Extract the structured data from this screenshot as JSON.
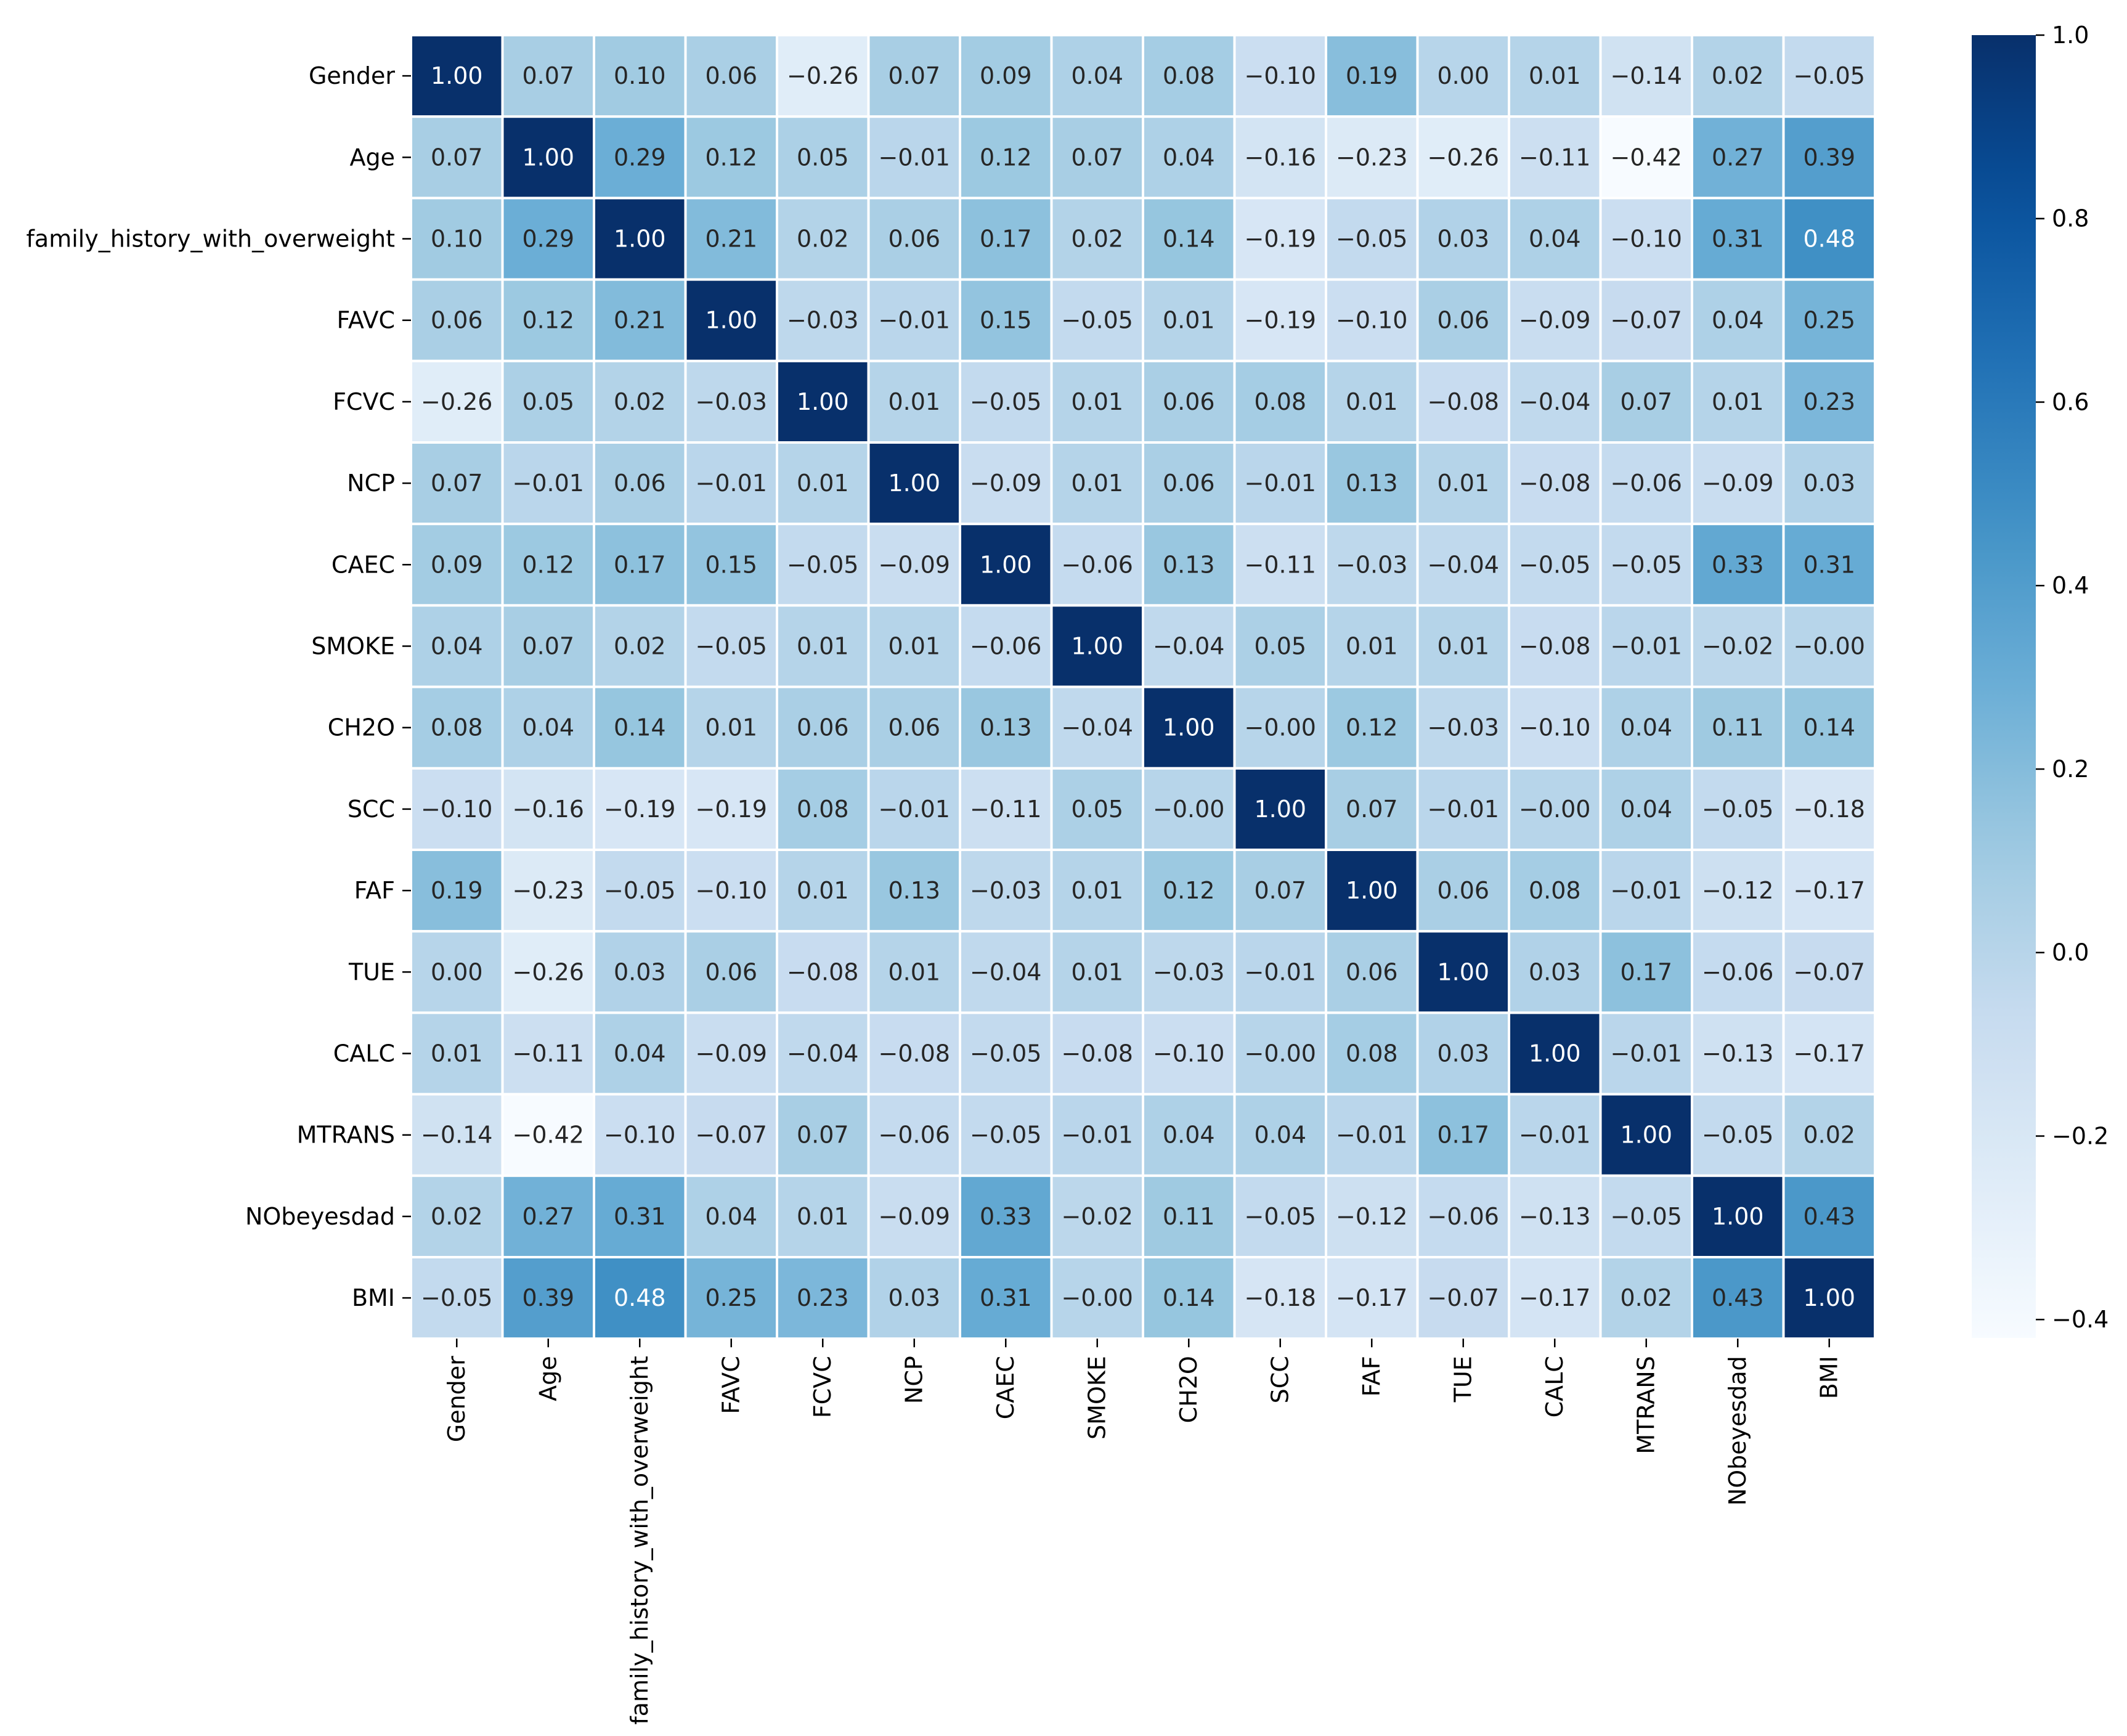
{
  "chart_data": {
    "type": "heatmap",
    "title": "",
    "xlabel": "",
    "ylabel": "",
    "colormap": "Blues",
    "vmin": -0.42,
    "vmax": 1.0,
    "annotation_format": "0.00",
    "labels": [
      "Gender",
      "Age",
      "family_history_with_overweight",
      "FAVC",
      "FCVC",
      "NCP",
      "CAEC",
      "SMOKE",
      "CH2O",
      "SCC",
      "FAF",
      "TUE",
      "CALC",
      "MTRANS",
      "NObeyesdad",
      "BMI"
    ],
    "matrix": [
      [
        1.0,
        0.07,
        0.1,
        0.06,
        -0.26,
        0.07,
        0.09,
        0.04,
        0.08,
        -0.1,
        0.19,
        0.0,
        0.01,
        -0.14,
        0.02,
        -0.05
      ],
      [
        0.07,
        1.0,
        0.29,
        0.12,
        0.05,
        -0.01,
        0.12,
        0.07,
        0.04,
        -0.16,
        -0.23,
        -0.26,
        -0.11,
        -0.42,
        0.27,
        0.39
      ],
      [
        0.1,
        0.29,
        1.0,
        0.21,
        0.02,
        0.06,
        0.17,
        0.02,
        0.14,
        -0.19,
        -0.05,
        0.03,
        0.04,
        -0.1,
        0.31,
        0.48
      ],
      [
        0.06,
        0.12,
        0.21,
        1.0,
        -0.03,
        -0.01,
        0.15,
        -0.05,
        0.01,
        -0.19,
        -0.1,
        0.06,
        -0.09,
        -0.07,
        0.04,
        0.25
      ],
      [
        -0.26,
        0.05,
        0.02,
        -0.03,
        1.0,
        0.01,
        -0.05,
        0.01,
        0.06,
        0.08,
        0.01,
        -0.08,
        -0.04,
        0.07,
        0.01,
        0.23
      ],
      [
        0.07,
        -0.01,
        0.06,
        -0.01,
        0.01,
        1.0,
        -0.09,
        0.01,
        0.06,
        -0.01,
        0.13,
        0.01,
        -0.08,
        -0.06,
        -0.09,
        0.03
      ],
      [
        0.09,
        0.12,
        0.17,
        0.15,
        -0.05,
        -0.09,
        1.0,
        -0.06,
        0.13,
        -0.11,
        -0.03,
        -0.04,
        -0.05,
        -0.05,
        0.33,
        0.31
      ],
      [
        0.04,
        0.07,
        0.02,
        -0.05,
        0.01,
        0.01,
        -0.06,
        1.0,
        -0.04,
        0.05,
        0.01,
        0.01,
        -0.08,
        -0.01,
        -0.02,
        -0.0
      ],
      [
        0.08,
        0.04,
        0.14,
        0.01,
        0.06,
        0.06,
        0.13,
        -0.04,
        1.0,
        -0.0,
        0.12,
        -0.03,
        -0.1,
        0.04,
        0.11,
        0.14
      ],
      [
        -0.1,
        -0.16,
        -0.19,
        -0.19,
        0.08,
        -0.01,
        -0.11,
        0.05,
        -0.0,
        1.0,
        0.07,
        -0.01,
        -0.0,
        0.04,
        -0.05,
        -0.18
      ],
      [
        0.19,
        -0.23,
        -0.05,
        -0.1,
        0.01,
        0.13,
        -0.03,
        0.01,
        0.12,
        0.07,
        1.0,
        0.06,
        0.08,
        -0.01,
        -0.12,
        -0.17
      ],
      [
        0.0,
        -0.26,
        0.03,
        0.06,
        -0.08,
        0.01,
        -0.04,
        0.01,
        -0.03,
        -0.01,
        0.06,
        1.0,
        0.03,
        0.17,
        -0.06,
        -0.07
      ],
      [
        0.01,
        -0.11,
        0.04,
        -0.09,
        -0.04,
        -0.08,
        -0.05,
        -0.08,
        -0.1,
        -0.0,
        0.08,
        0.03,
        1.0,
        -0.01,
        -0.13,
        -0.17
      ],
      [
        -0.14,
        -0.42,
        -0.1,
        -0.07,
        0.07,
        -0.06,
        -0.05,
        -0.01,
        0.04,
        0.04,
        -0.01,
        0.17,
        -0.01,
        1.0,
        -0.05,
        0.02
      ],
      [
        0.02,
        0.27,
        0.31,
        0.04,
        0.01,
        -0.09,
        0.33,
        -0.02,
        0.11,
        -0.05,
        -0.12,
        -0.06,
        -0.13,
        -0.05,
        1.0,
        0.43
      ],
      [
        -0.05,
        0.39,
        0.48,
        0.25,
        0.23,
        0.03,
        0.31,
        -0.0,
        0.14,
        -0.18,
        -0.17,
        -0.07,
        -0.17,
        0.02,
        0.43,
        1.0
      ]
    ],
    "colorbar": {
      "ticks": [
        1.0,
        0.8,
        0.6,
        0.4,
        0.2,
        0.0,
        -0.2,
        -0.4
      ],
      "tick_labels": [
        "1.0",
        "0.8",
        "0.6",
        "0.4",
        "0.2",
        "0.0",
        "−0.2",
        "−0.4"
      ]
    }
  }
}
